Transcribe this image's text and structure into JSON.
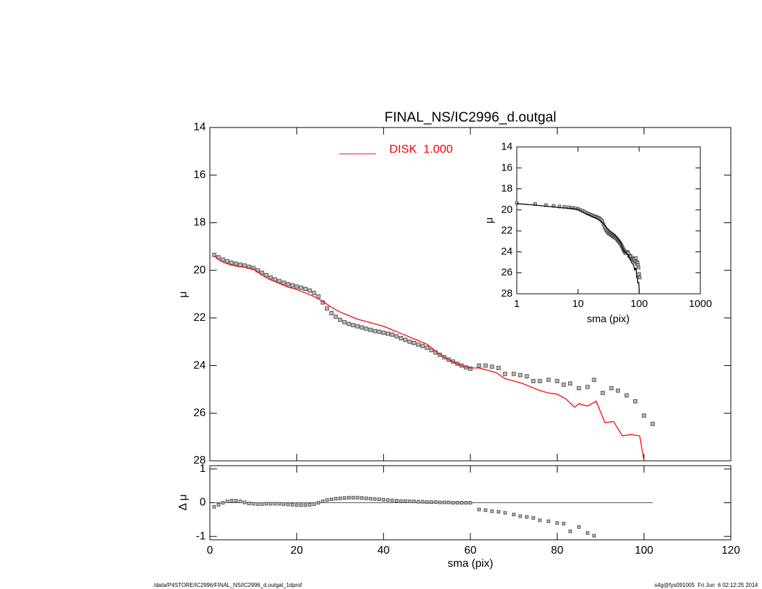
{
  "chart_data": [
    {
      "type": "scatter",
      "title": "FINAL_NS/IC2996_d.outgal",
      "ylabel": "μ",
      "xlim": [
        0,
        120
      ],
      "ylim": [
        14,
        28
      ],
      "y_inverted": true,
      "yticks": [
        14,
        16,
        18,
        20,
        22,
        24,
        26,
        28
      ],
      "legend": "top",
      "series": [
        {
          "type": "scatter",
          "color": "#555555",
          "x": [
            1,
            2,
            3,
            4,
            5,
            6,
            7,
            8,
            9,
            10,
            11,
            12,
            13,
            14,
            15,
            16,
            17,
            18,
            19,
            20,
            21,
            22,
            23,
            24,
            25,
            26,
            27,
            28,
            29,
            30,
            31,
            32,
            33,
            34,
            35,
            36,
            37,
            38,
            39,
            40,
            41,
            42,
            43,
            44,
            45,
            46,
            47,
            48,
            49,
            50,
            51,
            52,
            53,
            54,
            55,
            56,
            57,
            58,
            59,
            60,
            62,
            63.5,
            65,
            66.5,
            68,
            70,
            71.5,
            73,
            74.5,
            76,
            78,
            80,
            81.5,
            83,
            85,
            87,
            88.5,
            90.5,
            92.5,
            94,
            96,
            98,
            100,
            102
          ],
          "values": [
            19.35,
            19.45,
            19.55,
            19.62,
            19.68,
            19.72,
            19.76,
            19.8,
            19.85,
            19.9,
            20.0,
            20.1,
            20.2,
            20.3,
            20.38,
            20.45,
            20.52,
            20.58,
            20.63,
            20.68,
            20.73,
            20.78,
            20.85,
            20.95,
            21.1,
            21.35,
            21.6,
            21.8,
            21.95,
            22.08,
            22.18,
            22.25,
            22.3,
            22.35,
            22.4,
            22.45,
            22.5,
            22.55,
            22.58,
            22.62,
            22.66,
            22.7,
            22.77,
            22.85,
            22.92,
            23.0,
            23.05,
            23.12,
            23.18,
            23.25,
            23.35,
            23.45,
            23.55,
            23.65,
            23.75,
            23.83,
            23.92,
            24.0,
            24.08,
            24.13,
            24.0,
            24.0,
            24.05,
            24.1,
            24.35,
            24.35,
            24.4,
            24.45,
            24.65,
            24.65,
            24.6,
            24.65,
            24.8,
            24.75,
            24.95,
            24.9,
            24.6,
            25.15,
            24.95,
            25.05,
            25.25,
            25.5,
            26.1,
            26.45
          ]
        },
        {
          "type": "line",
          "name": "DISK  1.000",
          "color": "#ff0000",
          "x": [
            1,
            2,
            3,
            4,
            5,
            6,
            8,
            10,
            12,
            14,
            16,
            18,
            20,
            22,
            24,
            26,
            28,
            30,
            32,
            34,
            36,
            38,
            40,
            42,
            44,
            46,
            48,
            50,
            52,
            54,
            56,
            58,
            60,
            62,
            64,
            66,
            68,
            70,
            72,
            74,
            76,
            78,
            80,
            82,
            84,
            85,
            87,
            89,
            91,
            93,
            95,
            97,
            99,
            100
          ],
          "values": [
            19.4,
            19.55,
            19.65,
            19.72,
            19.78,
            19.82,
            19.87,
            19.95,
            20.2,
            20.4,
            20.55,
            20.7,
            20.8,
            20.95,
            21.1,
            21.3,
            21.55,
            21.75,
            21.9,
            22.05,
            22.15,
            22.25,
            22.35,
            22.5,
            22.65,
            22.8,
            22.95,
            23.1,
            23.4,
            23.65,
            23.85,
            24.0,
            24.1,
            24.1,
            24.2,
            24.3,
            24.55,
            24.65,
            24.75,
            24.9,
            25.05,
            25.15,
            25.2,
            25.4,
            25.75,
            25.6,
            25.7,
            25.5,
            26.4,
            26.35,
            26.95,
            26.9,
            26.95,
            28.0
          ]
        }
      ]
    },
    {
      "type": "scatter",
      "xlabel": "sma (pix)",
      "ylabel": "μ",
      "xlim": [
        1,
        1000
      ],
      "log_x": true,
      "xticks": [
        1,
        10,
        100,
        1000
      ],
      "ylim": [
        14,
        28
      ],
      "y_inverted": true,
      "yticks": [
        14,
        16,
        18,
        20,
        22,
        24,
        26,
        28
      ],
      "series": [
        {
          "type": "scatter",
          "color": "#555555",
          "x": [
            1,
            2,
            3,
            4,
            5,
            6,
            7,
            8,
            9,
            10,
            11,
            12,
            13,
            14,
            15,
            16,
            17,
            18,
            19,
            20,
            21,
            22,
            23,
            24,
            25,
            26,
            27,
            28,
            29,
            30,
            31,
            32,
            33,
            34,
            35,
            36,
            37,
            38,
            39,
            40,
            41,
            42,
            43,
            44,
            45,
            46,
            47,
            48,
            49,
            50,
            51,
            52,
            53,
            54,
            55,
            56,
            57,
            58,
            59,
            60,
            62,
            63.5,
            65,
            66.5,
            68,
            70,
            71.5,
            73,
            74.5,
            76,
            78,
            80,
            81.5,
            83,
            85,
            87,
            88.5,
            90.5,
            92.5,
            94,
            96,
            98,
            100,
            102
          ],
          "values": [
            19.35,
            19.45,
            19.55,
            19.62,
            19.68,
            19.72,
            19.76,
            19.8,
            19.85,
            19.9,
            20.0,
            20.1,
            20.2,
            20.3,
            20.38,
            20.45,
            20.52,
            20.58,
            20.63,
            20.68,
            20.73,
            20.78,
            20.85,
            20.95,
            21.1,
            21.35,
            21.6,
            21.8,
            21.95,
            22.08,
            22.18,
            22.25,
            22.3,
            22.35,
            22.4,
            22.45,
            22.5,
            22.55,
            22.58,
            22.62,
            22.66,
            22.7,
            22.77,
            22.85,
            22.92,
            23.0,
            23.05,
            23.12,
            23.18,
            23.25,
            23.35,
            23.45,
            23.55,
            23.65,
            23.75,
            23.83,
            23.92,
            24.0,
            24.08,
            24.13,
            24.0,
            24.0,
            24.05,
            24.1,
            24.35,
            24.35,
            24.4,
            24.45,
            24.65,
            24.65,
            24.6,
            24.65,
            24.8,
            24.75,
            24.95,
            24.9,
            24.6,
            25.15,
            24.95,
            25.05,
            25.25,
            25.5,
            26.1,
            26.45
          ]
        },
        {
          "type": "line",
          "color": "#000000",
          "x": [
            1,
            2,
            3,
            4,
            5,
            6,
            8,
            10,
            12,
            14,
            16,
            18,
            20,
            22,
            24,
            26,
            28,
            30,
            32,
            34,
            36,
            38,
            40,
            42,
            44,
            46,
            48,
            50,
            52,
            54,
            56,
            58,
            60,
            62,
            64,
            66,
            68,
            70,
            72,
            74,
            76,
            78,
            80,
            82,
            84,
            85,
            87,
            89,
            91,
            93,
            95,
            97,
            99,
            100
          ],
          "values": [
            19.4,
            19.55,
            19.65,
            19.72,
            19.78,
            19.82,
            19.87,
            19.95,
            20.2,
            20.4,
            20.55,
            20.7,
            20.8,
            20.95,
            21.1,
            21.3,
            21.55,
            21.75,
            21.9,
            22.05,
            22.15,
            22.25,
            22.35,
            22.5,
            22.65,
            22.8,
            22.95,
            23.1,
            23.4,
            23.65,
            23.85,
            24.0,
            24.1,
            24.1,
            24.2,
            24.3,
            24.55,
            24.65,
            24.75,
            24.9,
            25.05,
            25.15,
            25.2,
            25.4,
            25.75,
            25.6,
            25.7,
            25.5,
            26.4,
            26.35,
            26.95,
            26.9,
            26.95,
            28.0
          ]
        }
      ]
    },
    {
      "type": "scatter",
      "xlabel": "sma (pix)",
      "ylabel": "Δ μ",
      "xlim": [
        0,
        120
      ],
      "xticks": [
        0,
        20,
        40,
        60,
        80,
        100,
        120
      ],
      "ylim": [
        -1.1,
        1.1
      ],
      "yticks": [
        -1,
        0,
        1
      ],
      "reference_line": 0,
      "series": [
        {
          "type": "scatter",
          "color": "#555555",
          "x": [
            1,
            2,
            3,
            4,
            5,
            6,
            7,
            8,
            9,
            10,
            11,
            12,
            13,
            14,
            15,
            16,
            17,
            18,
            19,
            20,
            21,
            22,
            23,
            24,
            25,
            26,
            27,
            28,
            29,
            30,
            31,
            32,
            33,
            34,
            35,
            36,
            37,
            38,
            39,
            40,
            41,
            42,
            43,
            44,
            45,
            46,
            47,
            48,
            49,
            50,
            51,
            52,
            53,
            54,
            55,
            56,
            57,
            58,
            59,
            60,
            62,
            63.5,
            65,
            66.5,
            68,
            70,
            71.5,
            73,
            74.5,
            76,
            78,
            80,
            81.5,
            83,
            85,
            87,
            88.5
          ],
          "values": [
            -0.12,
            -0.06,
            0.0,
            0.04,
            0.06,
            0.06,
            0.04,
            0.01,
            -0.02,
            -0.03,
            -0.04,
            -0.04,
            -0.03,
            -0.03,
            -0.03,
            -0.03,
            -0.04,
            -0.05,
            -0.06,
            -0.07,
            -0.07,
            -0.07,
            -0.06,
            -0.04,
            0.0,
            0.04,
            0.08,
            0.1,
            0.12,
            0.13,
            0.14,
            0.15,
            0.15,
            0.15,
            0.14,
            0.13,
            0.12,
            0.11,
            0.1,
            0.09,
            0.08,
            0.07,
            0.06,
            0.05,
            0.05,
            0.04,
            0.04,
            0.03,
            0.03,
            0.02,
            0.02,
            0.02,
            0.01,
            0.01,
            0.01,
            0.0,
            0.0,
            0.0,
            0.0,
            0.0,
            -0.2,
            -0.22,
            -0.25,
            -0.27,
            -0.3,
            -0.35,
            -0.4,
            -0.42,
            -0.45,
            -0.52,
            -0.55,
            -0.6,
            -0.62,
            -0.85,
            -0.72,
            -0.9,
            -0.98
          ]
        }
      ]
    }
  ],
  "footer": {
    "left": "/data/P4STORE/IC2996/FINAL_NS/IC2996_d.outgal_1dprof",
    "right": "s4g@fys091005  Fri Jun  6 02:12:25 2014"
  }
}
